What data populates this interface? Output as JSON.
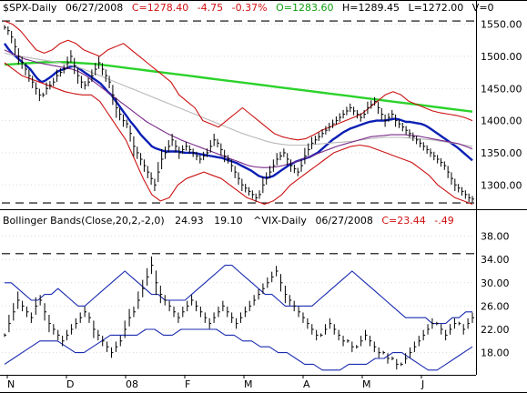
{
  "header": {
    "symbol": "$SPX-Daily",
    "date": "06/27/2008",
    "close": "C=1278.40",
    "change": "-4.75",
    "change_pct": "-0.37%",
    "open": "O=1283.60",
    "high": "H=1289.45",
    "low": "L=1272.00",
    "volume": "V=0"
  },
  "lower_header": {
    "study": "Bollinger Bands(Close,20,2,-2,0)",
    "upper_band": "24.93",
    "lower_band": "19.10",
    "symbol": "^VIX-Daily",
    "date": "06/27/2008",
    "close": "C=23.44",
    "change": "-.49"
  },
  "x_axis": {
    "labels": [
      "N",
      "D",
      "08",
      "F",
      "M",
      "A",
      "M",
      "J"
    ]
  },
  "chart_data": [
    {
      "type": "line",
      "name": "SPX price panel",
      "y_ticks": [
        "1550.00",
        "1500.00",
        "1450.00",
        "1400.00",
        "1350.00",
        "1300.00"
      ],
      "ylim": [
        1265,
        1565
      ],
      "reference_lines": [
        1555,
        1272
      ],
      "bars_count": 160,
      "series": [
        {
          "name": "price",
          "color": "#000000",
          "values": [
            1545,
            1540,
            1530,
            1515,
            1500,
            1490,
            1480,
            1470,
            1460,
            1450,
            1440,
            1440,
            1450,
            1455,
            1460,
            1470,
            1475,
            1480,
            1490,
            1500,
            1485,
            1470,
            1460,
            1455,
            1460,
            1470,
            1480,
            1490,
            1480,
            1470,
            1460,
            1440,
            1420,
            1410,
            1400,
            1395,
            1380,
            1360,
            1350,
            1340,
            1330,
            1320,
            1310,
            1300,
            1320,
            1340,
            1350,
            1360,
            1370,
            1360,
            1350,
            1355,
            1360,
            1355,
            1350,
            1345,
            1340,
            1345,
            1350,
            1360,
            1370,
            1365,
            1355,
            1345,
            1340,
            1330,
            1320,
            1310,
            1300,
            1295,
            1290,
            1285,
            1280,
            1285,
            1300,
            1310,
            1320,
            1330,
            1340,
            1345,
            1350,
            1340,
            1330,
            1325,
            1320,
            1330,
            1345,
            1355,
            1365,
            1370,
            1375,
            1380,
            1385,
            1390,
            1395,
            1400,
            1405,
            1410,
            1415,
            1420,
            1415,
            1410,
            1405,
            1410,
            1420,
            1425,
            1430,
            1420,
            1410,
            1400,
            1405,
            1410,
            1400,
            1395,
            1390,
            1385,
            1380,
            1375,
            1370,
            1365,
            1360,
            1355,
            1350,
            1345,
            1340,
            1335,
            1330,
            1320,
            1310,
            1300,
            1295,
            1290,
            1285,
            1280,
            1278
          ]
        },
        {
          "name": "blue moving average",
          "color": "#0a1fb4",
          "values": [
            1520,
            1512,
            1505,
            1500,
            1495,
            1490,
            1485,
            1480,
            1472,
            1465,
            1460,
            1462,
            1466,
            1470,
            1475,
            1478,
            1480,
            1482,
            1484,
            1485,
            1482,
            1478,
            1474,
            1470,
            1466,
            1462,
            1458,
            1452,
            1445,
            1440,
            1432,
            1424,
            1416,
            1408,
            1400,
            1393,
            1386,
            1378,
            1372,
            1366,
            1360,
            1357,
            1355,
            1353,
            1352,
            1352,
            1352,
            1352,
            1351,
            1350,
            1350,
            1350,
            1349,
            1348,
            1347,
            1346,
            1345,
            1344,
            1343,
            1342,
            1340,
            1338,
            1336,
            1334,
            1331,
            1328,
            1325,
            1322,
            1318,
            1314,
            1312,
            1311,
            1312,
            1314,
            1318,
            1322,
            1326,
            1330,
            1333,
            1336,
            1338,
            1340,
            1342,
            1344,
            1347,
            1350,
            1355,
            1360,
            1365,
            1370,
            1374,
            1378,
            1382,
            1385,
            1388,
            1390,
            1392,
            1394,
            1396,
            1398,
            1399,
            1400,
            1400,
            1400,
            1401,
            1402,
            1403,
            1402,
            1400,
            1398,
            1398,
            1397,
            1396,
            1395,
            1393,
            1390,
            1386,
            1382,
            1378,
            1374,
            1370,
            1366,
            1362,
            1358,
            1353,
            1348,
            1343,
            1338
          ]
        },
        {
          "name": "green moving average",
          "color": "#2bd22b",
          "values": [
            1487,
            1488,
            1489,
            1490,
            1491,
            1491,
            1491,
            1490,
            1489,
            1488,
            1486,
            1484,
            1482,
            1480,
            1478,
            1476,
            1474,
            1472,
            1470,
            1468,
            1466,
            1464,
            1462,
            1460,
            1458,
            1456,
            1454,
            1452,
            1450,
            1448,
            1446,
            1444,
            1442,
            1440,
            1438,
            1436,
            1434,
            1432,
            1430,
            1428,
            1426,
            1424,
            1422,
            1420,
            1418,
            1416,
            1414
          ]
        },
        {
          "name": "gray moving average",
          "color": "#b8b8b8",
          "values": [
            1505,
            1502,
            1500,
            1498,
            1496,
            1494,
            1492,
            1490,
            1487,
            1484,
            1480,
            1475,
            1470,
            1465,
            1460,
            1455,
            1450,
            1445,
            1440,
            1435,
            1430,
            1425,
            1420,
            1415,
            1410,
            1405,
            1400,
            1395,
            1390,
            1385,
            1380,
            1376,
            1372,
            1368,
            1365,
            1363,
            1362,
            1362,
            1362,
            1363,
            1364,
            1365,
            1366,
            1367,
            1368,
            1370,
            1372,
            1373,
            1374,
            1374,
            1374,
            1373,
            1372,
            1371,
            1370,
            1368,
            1366,
            1364,
            1362,
            1360
          ]
        },
        {
          "name": "purple moving average",
          "color": "#7a2a8a",
          "values": [
            1510,
            1505,
            1500,
            1496,
            1493,
            1490,
            1488,
            1486,
            1484,
            1482,
            1480,
            1476,
            1470,
            1462,
            1454,
            1446,
            1438,
            1430,
            1422,
            1414,
            1406,
            1398,
            1392,
            1386,
            1380,
            1375,
            1370,
            1366,
            1362,
            1358,
            1354,
            1350,
            1346,
            1342,
            1338,
            1334,
            1330,
            1328,
            1327,
            1327,
            1328,
            1330,
            1333,
            1336,
            1340,
            1344,
            1348,
            1352,
            1356,
            1360,
            1363,
            1366,
            1369,
            1372,
            1375,
            1376,
            1377,
            1378,
            1378,
            1378,
            1377,
            1376,
            1374,
            1372,
            1370,
            1368,
            1366,
            1364,
            1360,
            1356
          ]
        },
        {
          "name": "upper bollinger band",
          "color": "#cc1111",
          "values": [
            1555,
            1550,
            1540,
            1525,
            1510,
            1505,
            1510,
            1520,
            1525,
            1520,
            1510,
            1505,
            1500,
            1510,
            1515,
            1520,
            1510,
            1500,
            1490,
            1480,
            1470,
            1460,
            1440,
            1430,
            1420,
            1400,
            1395,
            1390,
            1400,
            1410,
            1420,
            1410,
            1400,
            1390,
            1380,
            1375,
            1372,
            1370,
            1372,
            1378,
            1385,
            1390,
            1395,
            1400,
            1405,
            1410,
            1420,
            1430,
            1440,
            1445,
            1440,
            1430,
            1425,
            1420,
            1415,
            1412,
            1410,
            1408,
            1405,
            1400
          ]
        },
        {
          "name": "lower bollinger band",
          "color": "#cc1111",
          "values": [
            1490,
            1480,
            1470,
            1465,
            1460,
            1455,
            1450,
            1445,
            1442,
            1440,
            1440,
            1430,
            1410,
            1390,
            1370,
            1340,
            1310,
            1285,
            1275,
            1280,
            1300,
            1310,
            1315,
            1320,
            1315,
            1310,
            1300,
            1290,
            1280,
            1275,
            1270,
            1275,
            1285,
            1300,
            1310,
            1320,
            1330,
            1340,
            1350,
            1355,
            1360,
            1362,
            1360,
            1355,
            1350,
            1345,
            1340,
            1335,
            1325,
            1315,
            1300,
            1290,
            1280,
            1275,
            1270
          ]
        }
      ]
    },
    {
      "type": "line",
      "name": "VIX panel",
      "y_ticks": [
        "38.00",
        "34.00",
        "30.00",
        "26.00",
        "22.00",
        "18.00"
      ],
      "ylim": [
        14.5,
        39.5
      ],
      "reference_lines": [
        35
      ],
      "bars_count": 160,
      "series": [
        {
          "name": "price",
          "color": "#000000",
          "values": [
            21,
            23,
            25,
            27,
            26,
            25,
            24,
            26,
            27,
            25,
            23,
            22,
            21,
            20,
            21,
            22,
            23,
            24,
            25,
            24,
            22,
            21,
            20,
            19,
            18,
            19,
            20,
            22,
            24,
            25,
            27,
            29,
            31,
            33,
            30,
            28,
            27,
            26,
            25,
            24,
            25,
            26,
            27,
            26,
            25,
            24,
            23,
            24,
            25,
            26,
            25,
            24,
            23,
            24,
            25,
            26,
            27,
            28,
            29,
            30,
            31,
            32,
            30,
            28,
            27,
            26,
            25,
            24,
            23,
            22,
            21,
            21,
            22,
            23,
            22,
            21,
            20,
            20,
            19,
            19,
            20,
            21,
            20,
            19,
            18,
            18,
            17,
            17,
            16,
            16,
            17,
            18,
            19,
            20,
            21,
            22,
            23,
            23,
            22,
            21,
            22,
            23,
            23,
            22,
            23,
            24
          ]
        },
        {
          "name": "upper bollinger band",
          "color": "#1a2bb0",
          "values": [
            30,
            30,
            29,
            28,
            27,
            27,
            28,
            28,
            29,
            28,
            27,
            26,
            26,
            27,
            28,
            29,
            30,
            31,
            32,
            31,
            30,
            29,
            28,
            28,
            27,
            27,
            27,
            27,
            28,
            29,
            30,
            31,
            32,
            33,
            33,
            32,
            31,
            30,
            29,
            28,
            28,
            27,
            26,
            26,
            26,
            26,
            26,
            27,
            28,
            29,
            30,
            31,
            32,
            31,
            30,
            29,
            28,
            27,
            26,
            25,
            24,
            24,
            24,
            24,
            23,
            23,
            23,
            24,
            24,
            25,
            25
          ]
        },
        {
          "name": "lower bollinger band",
          "color": "#1a2bb0",
          "values": [
            16,
            17,
            18,
            19,
            20,
            20,
            20,
            19,
            18,
            18,
            19,
            20,
            21,
            21,
            21,
            21,
            22,
            22,
            21,
            21,
            22,
            22,
            22,
            22,
            22,
            21,
            21,
            20,
            20,
            19,
            19,
            18,
            18,
            17,
            16,
            16,
            15,
            15,
            15,
            16,
            16,
            16,
            17,
            17,
            18,
            18,
            17,
            16,
            15,
            15,
            16,
            17,
            18,
            19
          ]
        }
      ]
    }
  ]
}
